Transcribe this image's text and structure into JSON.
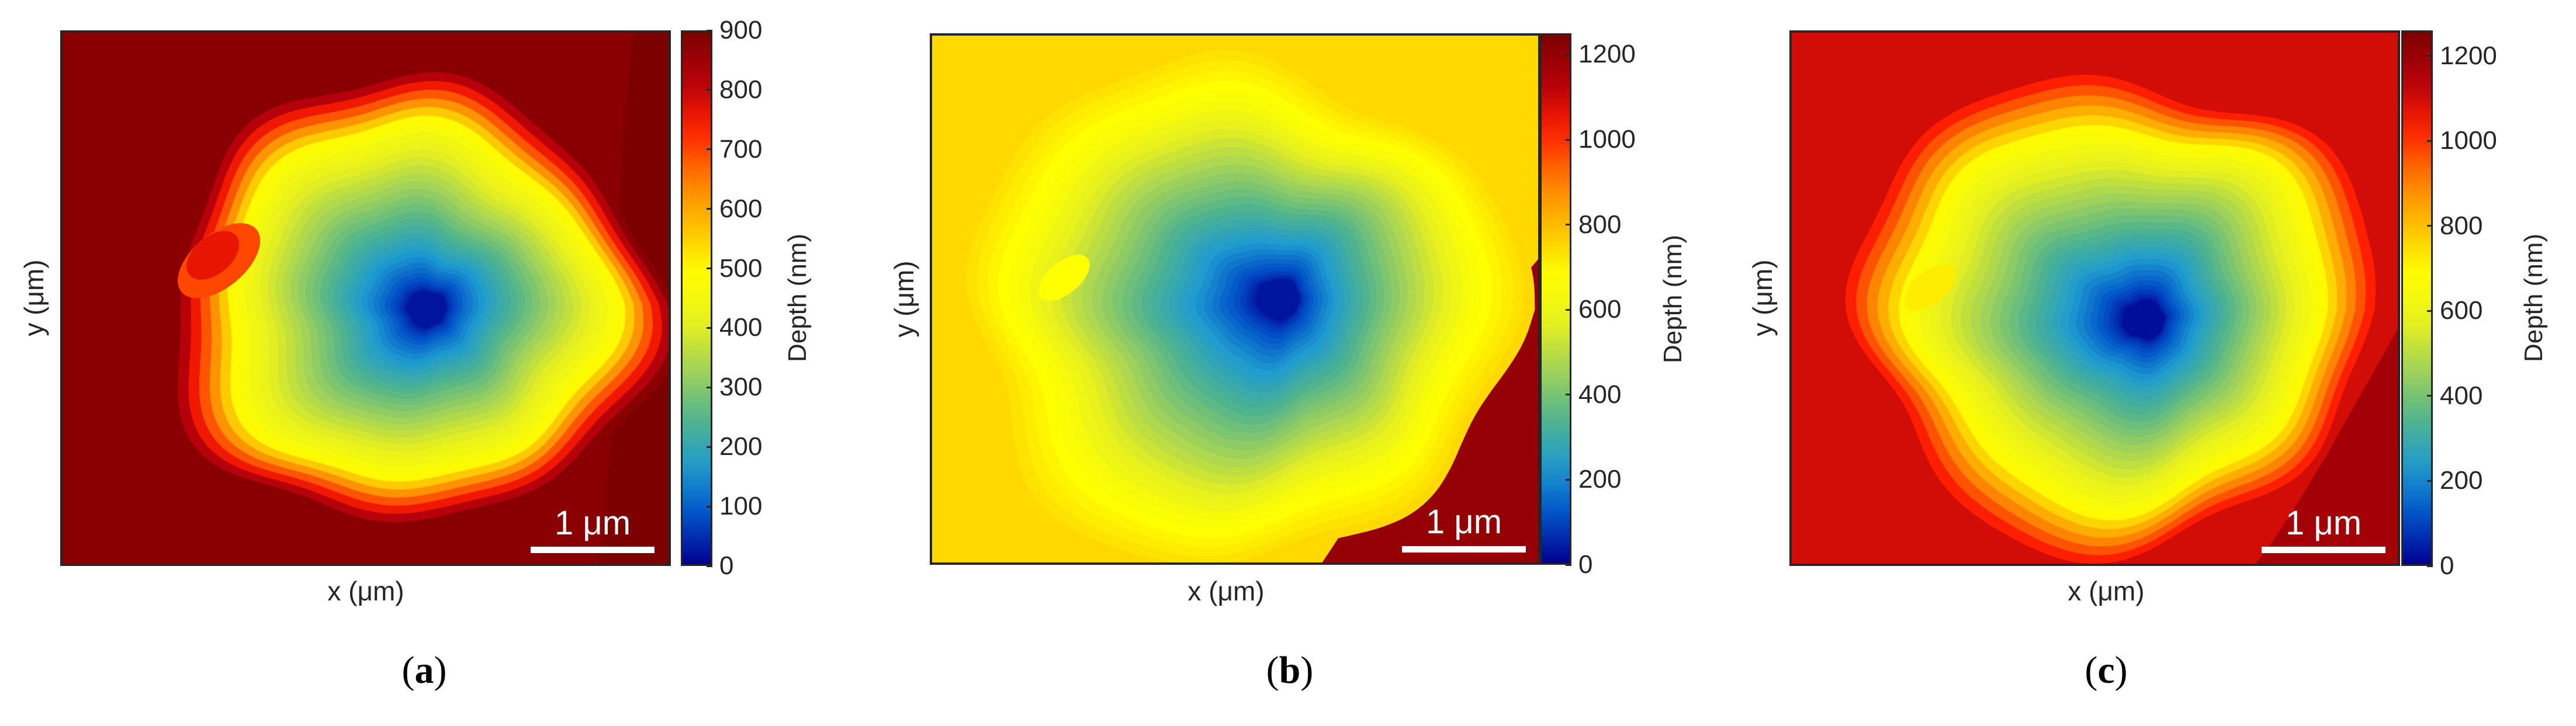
{
  "colors": {
    "scale": [
      "#00008f",
      "#0050c8",
      "#1e9bd0",
      "#50b48c",
      "#a0d25a",
      "#e6f01e",
      "#ffff00",
      "#ffc000",
      "#ff7a00",
      "#ff1e00",
      "#b4000a",
      "#7d0000"
    ],
    "axis": "#262626",
    "scalebar": "#ffffff"
  },
  "chart_data": [
    {
      "type": "heatmap",
      "panel_label": "a",
      "xlabel": "x (μm)",
      "ylabel": "y (μm)",
      "colorbar": {
        "label": "Depth (nm)",
        "range": [
          0,
          900
        ],
        "ticks": [
          "0",
          "100",
          "200",
          "300",
          "400",
          "500",
          "600",
          "700",
          "800",
          "900"
        ]
      },
      "scale_bar": "1 μm",
      "pit": {
        "min_depth_nm": 20,
        "rim_depth_nm": 500,
        "outer_depth_nm": 880
      },
      "features": [
        "raised spot near upper-left of pit (~700 nm)"
      ]
    },
    {
      "type": "heatmap",
      "panel_label": "b",
      "xlabel": "x (μm)",
      "ylabel": "y (μm)",
      "colorbar": {
        "label": "Depth (nm)",
        "range": [
          0,
          1250
        ],
        "ticks": [
          "0",
          "200",
          "400",
          "600",
          "800",
          "1000",
          "1200"
        ]
      },
      "scale_bar": "1 μm",
      "pit": {
        "min_depth_nm": 30,
        "rim_depth_nm": 650,
        "outer_depth_nm": 750
      },
      "features": [
        "deep-red (~1200 nm) lower-right corner region"
      ]
    },
    {
      "type": "heatmap",
      "panel_label": "c",
      "xlabel": "x (μm)",
      "ylabel": "y (μm)",
      "colorbar": {
        "label": "Depth (nm)",
        "range": [
          0,
          1260
        ],
        "ticks": [
          "0",
          "200",
          "400",
          "600",
          "800",
          "1000",
          "1200"
        ]
      },
      "scale_bar": "1 μm",
      "pit": {
        "min_depth_nm": 20,
        "rim_depth_nm": 700,
        "outer_depth_nm": 1100
      },
      "features": [
        "darker red (~1200 nm) lower-right corner"
      ]
    }
  ]
}
